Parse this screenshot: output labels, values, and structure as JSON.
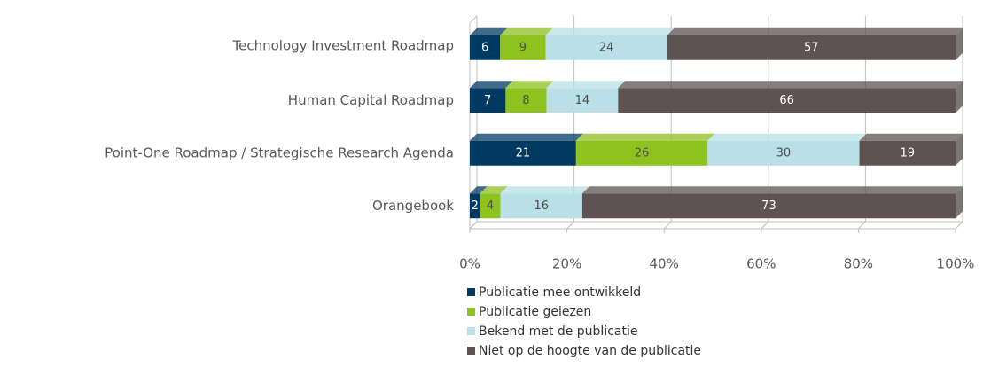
{
  "chart_data": {
    "type": "bar",
    "orientation": "horizontal",
    "stacked": "percent",
    "categories": [
      "Technology Investment Roadmap",
      "Human Capital Roadmap",
      "Point-One Roadmap / Strategische Research Agenda",
      "Orangebook"
    ],
    "series": [
      {
        "name": "Publicatie mee ontwikkeld",
        "color": "#003a63",
        "label_color": "#ffffff",
        "values": [
          6,
          7,
          21,
          2
        ]
      },
      {
        "name": "Publicatie gelezen",
        "color": "#8dc21f",
        "label_color": "#4d4d4d",
        "values": [
          9,
          8,
          26,
          4
        ]
      },
      {
        "name": "Bekend met de publicatie",
        "color": "#b8e0e6",
        "label_color": "#4d4d4d",
        "values": [
          24,
          14,
          30,
          16
        ]
      },
      {
        "name": "Niet op de hoogte van de publicatie",
        "color": "#5e5253",
        "label_color": "#ffffff",
        "values": [
          57,
          66,
          19,
          73
        ]
      }
    ],
    "xlim": [
      0,
      100
    ],
    "xticks": [
      {
        "value": 0,
        "label": "0%"
      },
      {
        "value": 20,
        "label": "20%"
      },
      {
        "value": 40,
        "label": "40%"
      },
      {
        "value": 60,
        "label": "60%"
      },
      {
        "value": 80,
        "label": "80%"
      },
      {
        "value": 100,
        "label": "100%"
      }
    ],
    "grid": true,
    "legend": "bottom"
  }
}
